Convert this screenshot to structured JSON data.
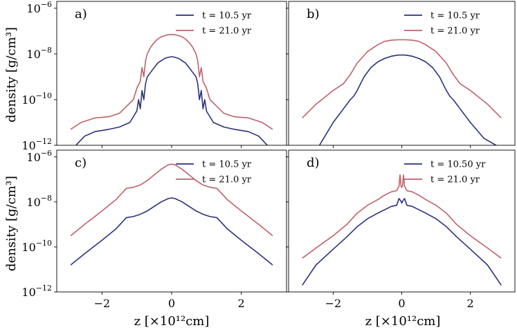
{
  "chart_data": {
    "type": "line",
    "y_scale": "log",
    "ylabel": "density [g/cm³]",
    "xlabel": "z [×10¹²cm]",
    "xlim": [
      -3.3,
      3.3
    ],
    "ylim_exponents": [
      -12,
      -5.7
    ],
    "x_ticks": [
      -2,
      0,
      2
    ],
    "x_tick_labels": [
      "−2",
      "0",
      "2"
    ],
    "y_ticks": [
      -6,
      -8,
      -10,
      -12
    ],
    "y_tick_base": "10",
    "y_tick_exponents": [
      "−6",
      "−8",
      "−10",
      "−12"
    ],
    "colors": {
      "blue": "#2a2f7d",
      "red": "#c0606a"
    },
    "panels": [
      {
        "title": "a)",
        "series": [
          {
            "name": "t = 10.5 yr",
            "color": "#2a2f7d",
            "x": [
              -2.75,
              -2.5,
              -2.2,
              -1.8,
              -1.5,
              -1.2,
              -1.0,
              -0.95,
              -0.9,
              -0.85,
              -0.8,
              -0.75,
              -0.7,
              -0.6,
              -0.5,
              -0.4,
              -0.3,
              -0.2,
              -0.1,
              0,
              0.1,
              0.2,
              0.3,
              0.4,
              0.5,
              0.6,
              0.7,
              0.75,
              0.8,
              0.85,
              0.9,
              0.95,
              1.0,
              1.2,
              1.5,
              1.8,
              2.2,
              2.5,
              2.75
            ],
            "y": [
              -12.0,
              -11.6,
              -11.4,
              -11.3,
              -11.2,
              -11.0,
              -10.5,
              -10.0,
              -10.4,
              -9.6,
              -10.0,
              -9.3,
              -9.0,
              -8.8,
              -8.6,
              -8.4,
              -8.3,
              -8.2,
              -8.15,
              -8.12,
              -8.15,
              -8.2,
              -8.3,
              -8.4,
              -8.6,
              -8.8,
              -9.0,
              -9.3,
              -10.0,
              -9.6,
              -10.4,
              -10.0,
              -10.5,
              -11.0,
              -11.2,
              -11.3,
              -11.4,
              -11.6,
              -12.0
            ]
          },
          {
            "name": "t = 21.0 yr",
            "color": "#c0606a",
            "x": [
              -2.9,
              -2.6,
              -2.2,
              -1.8,
              -1.5,
              -1.3,
              -1.1,
              -1.0,
              -0.9,
              -0.85,
              -0.8,
              -0.75,
              -0.7,
              -0.6,
              -0.5,
              -0.4,
              -0.3,
              -0.2,
              -0.1,
              0,
              0.1,
              0.2,
              0.3,
              0.4,
              0.5,
              0.6,
              0.7,
              0.75,
              0.8,
              0.85,
              0.9,
              1.0,
              1.1,
              1.3,
              1.5,
              1.8,
              2.2,
              2.6,
              2.9
            ],
            "y": [
              -11.3,
              -11.0,
              -10.8,
              -10.75,
              -10.6,
              -10.3,
              -10.0,
              -9.5,
              -9.2,
              -8.6,
              -9.0,
              -8.3,
              -8.0,
              -7.7,
              -7.5,
              -7.35,
              -7.25,
              -7.2,
              -7.16,
              -7.15,
              -7.16,
              -7.2,
              -7.25,
              -7.35,
              -7.5,
              -7.7,
              -8.0,
              -8.3,
              -9.0,
              -8.6,
              -9.2,
              -9.5,
              -10.0,
              -10.3,
              -10.6,
              -10.75,
              -10.8,
              -11.0,
              -11.3
            ]
          }
        ]
      },
      {
        "title": "b)",
        "series": [
          {
            "name": "t = 10.5 yr",
            "color": "#2a2f7d",
            "x": [
              -2.4,
              -2.0,
              -1.7,
              -1.5,
              -1.4,
              -1.3,
              -1.1,
              -0.9,
              -0.7,
              -0.5,
              -0.3,
              -0.1,
              0,
              0.1,
              0.3,
              0.5,
              0.7,
              0.9,
              1.1,
              1.3,
              1.4,
              1.5,
              1.7,
              2.0,
              2.4,
              2.75
            ],
            "y": [
              -12.0,
              -11.0,
              -10.4,
              -10.0,
              -9.85,
              -9.6,
              -9.0,
              -8.6,
              -8.35,
              -8.2,
              -8.1,
              -8.05,
              -8.05,
              -8.05,
              -8.1,
              -8.2,
              -8.35,
              -8.6,
              -9.0,
              -9.6,
              -9.85,
              -10.0,
              -10.4,
              -11.0,
              -11.7,
              -12.0
            ]
          },
          {
            "name": "t = 21.0 yr",
            "color": "#c0606a",
            "x": [
              -2.9,
              -2.5,
              -2.0,
              -1.7,
              -1.5,
              -1.3,
              -1.0,
              -0.7,
              -0.5,
              -0.3,
              -0.1,
              0,
              0.1,
              0.3,
              0.5,
              0.7,
              1.0,
              1.3,
              1.5,
              1.7,
              2.0,
              2.5,
              2.9
            ],
            "y": [
              -10.8,
              -10.2,
              -9.6,
              -9.3,
              -8.9,
              -8.4,
              -7.9,
              -7.6,
              -7.45,
              -7.4,
              -7.38,
              -7.38,
              -7.38,
              -7.4,
              -7.45,
              -7.6,
              -7.9,
              -8.4,
              -8.9,
              -9.3,
              -9.6,
              -10.2,
              -10.8
            ]
          }
        ]
      },
      {
        "title": "c)",
        "series": [
          {
            "name": "t = 10.5 yr",
            "color": "#2a2f7d",
            "x": [
              -2.9,
              -2.5,
              -2.0,
              -1.6,
              -1.3,
              -1.1,
              -0.9,
              -0.7,
              -0.5,
              -0.3,
              -0.1,
              0,
              0.1,
              0.3,
              0.5,
              0.7,
              0.9,
              1.1,
              1.3,
              1.6,
              2.0,
              2.5,
              2.9
            ],
            "y": [
              -10.8,
              -10.3,
              -9.7,
              -9.2,
              -8.7,
              -8.65,
              -8.55,
              -8.4,
              -8.2,
              -8.0,
              -7.85,
              -7.82,
              -7.85,
              -8.0,
              -8.2,
              -8.4,
              -8.55,
              -8.65,
              -8.7,
              -9.2,
              -9.7,
              -10.3,
              -10.8
            ]
          },
          {
            "name": "t = 21.0 yr",
            "color": "#c0606a",
            "x": [
              -2.9,
              -2.5,
              -2.0,
              -1.6,
              -1.3,
              -1.1,
              -0.9,
              -0.7,
              -0.5,
              -0.3,
              -0.1,
              0,
              0.1,
              0.3,
              0.5,
              0.7,
              0.9,
              1.1,
              1.3,
              1.6,
              2.0,
              2.5,
              2.9
            ],
            "y": [
              -9.5,
              -9.0,
              -8.4,
              -7.9,
              -7.4,
              -7.35,
              -7.25,
              -7.05,
              -6.8,
              -6.55,
              -6.35,
              -6.32,
              -6.35,
              -6.55,
              -6.8,
              -7.05,
              -7.25,
              -7.35,
              -7.4,
              -7.9,
              -8.4,
              -9.0,
              -9.5
            ]
          }
        ]
      },
      {
        "title": "d)",
        "series": [
          {
            "name": "t = 10.50 yr",
            "color": "#2a2f7d",
            "x": [
              -2.9,
              -2.5,
              -2.0,
              -1.6,
              -1.3,
              -1.0,
              -0.7,
              -0.5,
              -0.3,
              -0.15,
              -0.08,
              -0.03,
              0,
              0.03,
              0.08,
              0.15,
              0.3,
              0.5,
              0.7,
              1.0,
              1.3,
              1.6,
              2.0,
              2.5,
              2.9
            ],
            "y": [
              -11.7,
              -10.8,
              -10.1,
              -9.55,
              -9.1,
              -8.75,
              -8.5,
              -8.35,
              -8.2,
              -8.15,
              -7.85,
              -7.95,
              -8.05,
              -7.95,
              -7.85,
              -8.15,
              -8.2,
              -8.35,
              -8.5,
              -8.75,
              -9.1,
              -9.55,
              -10.1,
              -10.8,
              -11.7
            ]
          },
          {
            "name": "t = 21.0 yr",
            "color": "#c0606a",
            "x": [
              -2.9,
              -2.5,
              -2.0,
              -1.6,
              -1.3,
              -1.0,
              -0.7,
              -0.5,
              -0.3,
              -0.15,
              -0.08,
              -0.05,
              -0.02,
              0,
              0.02,
              0.05,
              0.08,
              0.15,
              0.3,
              0.5,
              0.7,
              1.0,
              1.3,
              1.6,
              2.0,
              2.5,
              2.9
            ],
            "y": [
              -10.5,
              -10.05,
              -9.5,
              -9.0,
              -8.5,
              -8.15,
              -7.9,
              -7.7,
              -7.55,
              -7.5,
              -7.3,
              -6.8,
              -7.3,
              -7.35,
              -7.3,
              -6.8,
              -7.3,
              -7.5,
              -7.55,
              -7.7,
              -7.9,
              -8.15,
              -8.5,
              -9.0,
              -9.5,
              -10.05,
              -10.5
            ]
          }
        ]
      }
    ]
  }
}
